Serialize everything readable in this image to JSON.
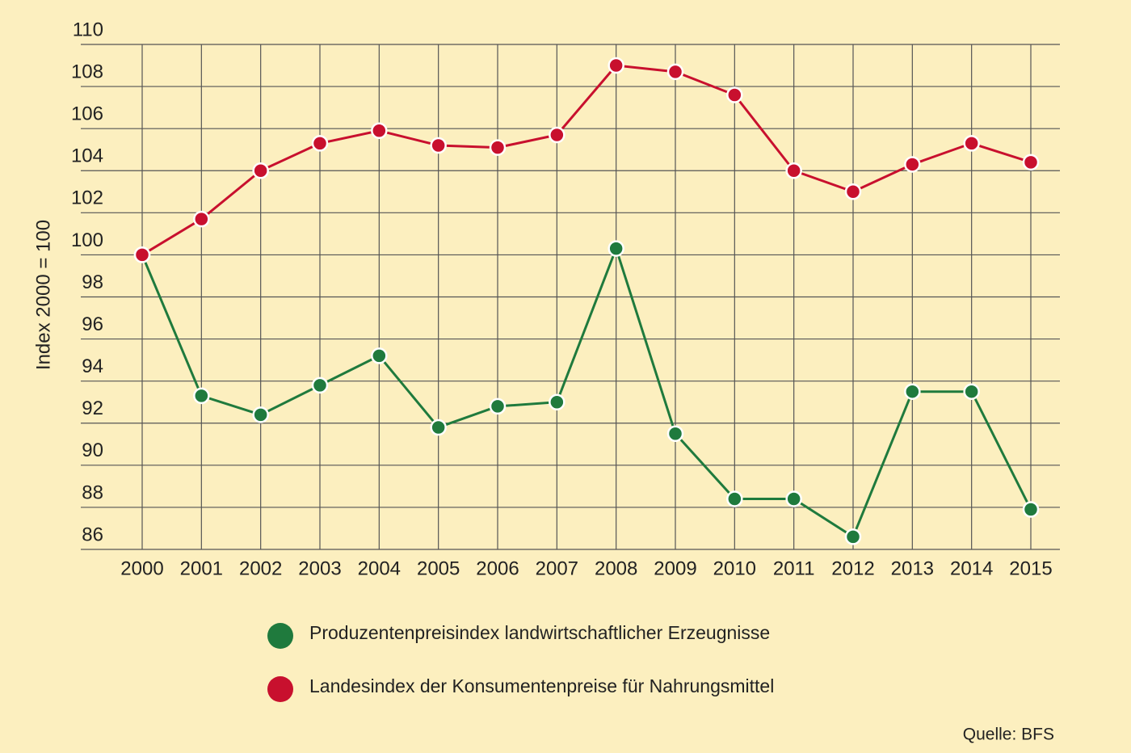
{
  "chart_data": {
    "type": "line",
    "y_label": "Index 2000 = 100",
    "categories": [
      "2000",
      "2001",
      "2002",
      "2003",
      "2004",
      "2005",
      "2006",
      "2007",
      "2008",
      "2009",
      "2010",
      "2011",
      "2012",
      "2013",
      "2014",
      "2015"
    ],
    "series": [
      {
        "name": "Produzentenpreisindex landwirtschaftlicher Erzeugnisse",
        "color": "#1f7a3d",
        "values": [
          100,
          93.3,
          92.4,
          93.8,
          95.2,
          91.8,
          92.8,
          93.0,
          100.3,
          91.5,
          88.4,
          88.4,
          86.6,
          93.5,
          93.5,
          87.9
        ]
      },
      {
        "name": "Landesindex der Konsumentenpreise für Nahrungsmittel",
        "color": "#c8102e",
        "values": [
          100,
          101.7,
          104.0,
          105.3,
          105.9,
          105.2,
          105.1,
          105.7,
          109.0,
          108.7,
          107.6,
          104.0,
          103.0,
          104.3,
          105.3,
          104.4
        ]
      }
    ],
    "ylim": [
      86,
      110
    ],
    "yticks": [
      86,
      88,
      90,
      92,
      94,
      96,
      98,
      100,
      102,
      104,
      106,
      108,
      110
    ],
    "grid": true,
    "source": "Quelle: BFS"
  }
}
